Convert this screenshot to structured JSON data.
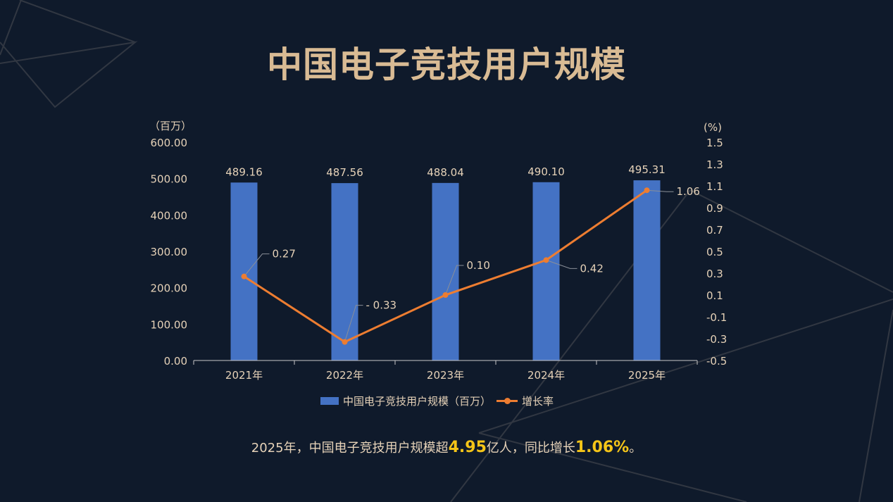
{
  "title": "中国电子竞技用户规模",
  "chart_data": {
    "type": "bar+line",
    "categories": [
      "2021年",
      "2022年",
      "2023年",
      "2024年",
      "2025年"
    ],
    "series": [
      {
        "name": "中国电子竞技用户规模（百万）",
        "type": "bar",
        "axis": "left",
        "values": [
          489.16,
          487.56,
          488.04,
          490.1,
          495.31
        ],
        "labels": [
          "489.16",
          "487.56",
          "488.04",
          "490.10",
          "495.31"
        ],
        "color": "#4472c4"
      },
      {
        "name": "增长率",
        "type": "line",
        "axis": "right",
        "values": [
          0.27,
          -0.33,
          0.1,
          0.42,
          1.06
        ],
        "labels": [
          "0.27",
          "- 0.33",
          "0.10",
          "0.42",
          "1.06"
        ],
        "color": "#ed7d31"
      }
    ],
    "left_axis": {
      "label": "（百万）",
      "ylim": [
        0,
        600
      ],
      "ticks": [
        "0.00",
        "100.00",
        "200.00",
        "300.00",
        "400.00",
        "500.00",
        "600.00"
      ]
    },
    "right_axis": {
      "label": "(%)",
      "ylim": [
        -0.5,
        1.5
      ],
      "ticks": [
        "-0.5",
        "-0.3",
        "-0.1",
        "0.1",
        "0.3",
        "0.5",
        "0.7",
        "0.9",
        "1.1",
        "1.3",
        "1.5"
      ]
    },
    "grid": false,
    "legend": "bottom"
  },
  "summary": {
    "prefix": "2025年，中国电子竞技用户规模超",
    "value1": "4.95",
    "mid": "亿人，同比增长",
    "value2": "1.06%",
    "suffix": "。"
  }
}
